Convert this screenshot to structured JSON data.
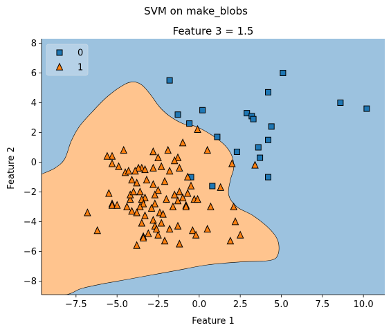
{
  "colors": {
    "class0_region": "#9CC2DF",
    "class1_region": "#FFC48E",
    "class0_marker": "#1F77B4",
    "class1_marker": "#FF7F0E",
    "marker_edge": "#000000",
    "boundary": "#000000",
    "legend_bg": "#B8D2E8"
  },
  "chart_data": {
    "type": "scatter",
    "suptitle": "SVM on make_blobs",
    "title": "Feature 3 = 1.5",
    "xlabel": "Feature 1",
    "ylabel": "Feature 2",
    "xlim": [
      -9.6,
      11.3
    ],
    "ylim": [
      -8.9,
      8.3
    ],
    "xticks": [
      -7.5,
      -5.0,
      -2.5,
      0.0,
      2.5,
      5.0,
      7.5,
      10.0
    ],
    "xtick_labels": [
      "−7.5",
      "−5.0",
      "−2.5",
      "0.0",
      "2.5",
      "5.0",
      "7.5",
      "10.0"
    ],
    "yticks": [
      -8,
      -6,
      -4,
      -2,
      0,
      2,
      4,
      6,
      8
    ],
    "ytick_labels": [
      "−8",
      "−6",
      "−4",
      "−2",
      "0",
      "2",
      "4",
      "6",
      "8"
    ],
    "grid": false,
    "legend": {
      "placement": "top-left",
      "entries": [
        {
          "label": "0",
          "marker": "square"
        },
        {
          "label": "1",
          "marker": "triangle"
        }
      ]
    },
    "decision_regions": {
      "class0": "background",
      "class1_boundary": [
        [
          -9.6,
          -0.8
        ],
        [
          -8.8,
          -0.4
        ],
        [
          -8.2,
          0.2
        ],
        [
          -7.8,
          1.4
        ],
        [
          -7.3,
          2.4
        ],
        [
          -6.5,
          3.4
        ],
        [
          -5.6,
          4.4
        ],
        [
          -4.6,
          5.2
        ],
        [
          -4.0,
          5.4
        ],
        [
          -3.5,
          5.2
        ],
        [
          -3.0,
          4.6
        ],
        [
          -2.4,
          3.7
        ],
        [
          -1.8,
          3.1
        ],
        [
          -1.0,
          2.6
        ],
        [
          -0.2,
          2.4
        ],
        [
          0.8,
          1.8
        ],
        [
          1.6,
          1.1
        ],
        [
          2.0,
          0.4
        ],
        [
          2.1,
          -0.4
        ],
        [
          1.9,
          -1.2
        ],
        [
          1.8,
          -2.2
        ],
        [
          2.3,
          -3.0
        ],
        [
          3.3,
          -3.6
        ],
        [
          4.3,
          -4.5
        ],
        [
          4.8,
          -5.3
        ],
        [
          4.8,
          -6.2
        ],
        [
          4.3,
          -6.6
        ],
        [
          2.5,
          -6.7
        ],
        [
          0.5,
          -6.9
        ],
        [
          -1.5,
          -7.3
        ],
        [
          -3.0,
          -7.6
        ],
        [
          -4.5,
          -7.9
        ],
        [
          -6.0,
          -8.2
        ],
        [
          -7.2,
          -8.5
        ],
        [
          -8.1,
          -8.9
        ],
        [
          -9.6,
          -8.9
        ]
      ]
    },
    "series": [
      {
        "name": "0",
        "marker": "square",
        "points": [
          [
            -1.8,
            5.5
          ],
          [
            0.2,
            3.5
          ],
          [
            -1.3,
            3.2
          ],
          [
            -0.6,
            2.6
          ],
          [
            1.1,
            1.7
          ],
          [
            2.9,
            3.3
          ],
          [
            3.2,
            3.1
          ],
          [
            3.3,
            2.9
          ],
          [
            5.1,
            6.0
          ],
          [
            4.2,
            4.7
          ],
          [
            4.4,
            2.4
          ],
          [
            3.6,
            1.0
          ],
          [
            4.2,
            1.5
          ],
          [
            3.7,
            0.3
          ],
          [
            2.3,
            0.7
          ],
          [
            4.2,
            -1.0
          ],
          [
            0.8,
            -1.6
          ],
          [
            -0.5,
            -1.0
          ],
          [
            8.6,
            4.0
          ],
          [
            10.2,
            3.6
          ]
        ]
      },
      {
        "name": "1",
        "marker": "triangle",
        "points": [
          [
            -0.1,
            2.2
          ],
          [
            -1.0,
            1.3
          ],
          [
            0.5,
            0.8
          ],
          [
            2.0,
            -0.1
          ],
          [
            3.4,
            -0.2
          ],
          [
            -1.9,
            0.8
          ],
          [
            -2.8,
            0.7
          ],
          [
            -1.3,
            0.3
          ],
          [
            -1.5,
            0.1
          ],
          [
            -2.5,
            0.3
          ],
          [
            -2.3,
            -0.3
          ],
          [
            -2.8,
            -0.4
          ],
          [
            -3.5,
            -0.4
          ],
          [
            -3.7,
            -0.4
          ],
          [
            -5.3,
            0.4
          ],
          [
            -4.9,
            -0.3
          ],
          [
            -5.6,
            0.4
          ],
          [
            -4.6,
            0.8
          ],
          [
            -4.5,
            -0.7
          ],
          [
            -4.3,
            -0.6
          ],
          [
            -3.9,
            -0.6
          ],
          [
            -3.3,
            -0.5
          ],
          [
            -5.3,
            -0.1
          ],
          [
            -2.8,
            -1.5
          ],
          [
            -2.1,
            -1.3
          ],
          [
            -1.8,
            -0.6
          ],
          [
            -1.2,
            -0.4
          ],
          [
            -0.7,
            -1.0
          ],
          [
            -0.5,
            -1.6
          ],
          [
            -1.2,
            -2.0
          ],
          [
            -3.2,
            -1.2
          ],
          [
            -2.5,
            -1.9
          ],
          [
            -3.6,
            -2.0
          ],
          [
            -4.1,
            -1.2
          ],
          [
            -3.8,
            -1.4
          ],
          [
            -2.7,
            -2.2
          ],
          [
            -3.3,
            -2.4
          ],
          [
            -3.5,
            -2.5
          ],
          [
            -2.7,
            -2.8
          ],
          [
            -3.4,
            -2.8
          ],
          [
            -1.5,
            -2.2
          ],
          [
            -1.3,
            -2.6
          ],
          [
            -1.6,
            -3.0
          ],
          [
            -0.8,
            -2.9
          ],
          [
            -0.8,
            -3.0
          ],
          [
            -1.0,
            -2.4
          ],
          [
            -0.3,
            -2.5
          ],
          [
            -0.1,
            -2.5
          ],
          [
            0.7,
            -3.0
          ],
          [
            1.3,
            -1.7
          ],
          [
            -2.4,
            -3.4
          ],
          [
            -2.2,
            -3.5
          ],
          [
            -2.8,
            -3.9
          ],
          [
            -3.3,
            -3.6
          ],
          [
            -3.8,
            -3.4
          ],
          [
            -3.6,
            -3.0
          ],
          [
            -4.1,
            -3.3
          ],
          [
            -4.4,
            -3.0
          ],
          [
            -5.3,
            -2.8
          ],
          [
            -5.3,
            -2.9
          ],
          [
            -5.0,
            -2.9
          ],
          [
            -4.2,
            -2.5
          ],
          [
            -4.2,
            -2.2
          ],
          [
            -6.8,
            -3.4
          ],
          [
            -6.2,
            -4.6
          ],
          [
            -3.5,
            -4.1
          ],
          [
            -2.3,
            -4.1
          ],
          [
            -2.7,
            -4.3
          ],
          [
            -3.1,
            -4.8
          ],
          [
            -3.4,
            -5.0
          ],
          [
            -3.4,
            -5.1
          ],
          [
            -3.8,
            -5.6
          ],
          [
            -2.5,
            -4.9
          ],
          [
            -1.8,
            -4.5
          ],
          [
            -2.6,
            -4.5
          ],
          [
            -1.3,
            -4.3
          ],
          [
            -1.2,
            -5.5
          ],
          [
            -2.1,
            -5.3
          ],
          [
            -0.4,
            -4.6
          ],
          [
            -0.2,
            -4.9
          ],
          [
            0.5,
            -4.5
          ],
          [
            2.1,
            -3.0
          ],
          [
            2.2,
            -4.0
          ],
          [
            1.9,
            -5.3
          ],
          [
            2.5,
            -4.9
          ],
          [
            -5.5,
            -2.1
          ],
          [
            -4.0,
            -2.0
          ],
          [
            -2.0,
            -2.5
          ],
          [
            -0.7,
            -2.1
          ],
          [
            -2.9,
            -3.1
          ]
        ]
      }
    ]
  }
}
